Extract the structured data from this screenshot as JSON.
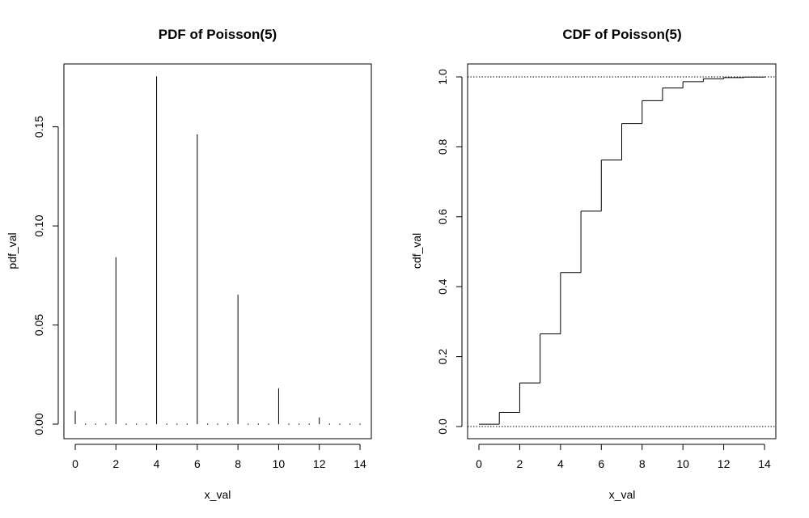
{
  "chart_data": [
    {
      "type": "bar",
      "title": "PDF of Poisson(5)",
      "xlabel": "x_val",
      "ylabel": "pdf_val",
      "xlim": [
        0,
        14
      ],
      "ylim": [
        0,
        0.176
      ],
      "xticks": [
        0,
        2,
        4,
        6,
        8,
        10,
        12,
        14
      ],
      "xtick_labels": [
        "0",
        "2",
        "4",
        "6",
        "8",
        "10",
        "12",
        "14"
      ],
      "yticks": [
        0,
        0.05,
        0.1,
        0.15
      ],
      "ytick_labels": [
        "0.00",
        "0.05",
        "0.10",
        "0.15"
      ],
      "x": [
        0,
        2,
        4,
        6,
        8,
        10,
        12
      ],
      "values": [
        0.0067,
        0.0842,
        0.1755,
        0.1462,
        0.0653,
        0.0181,
        0.0034
      ],
      "grid": false
    },
    {
      "type": "line",
      "title": "CDF of Poisson(5)",
      "xlabel": "x_val",
      "ylabel": "cdf_val",
      "xlim": [
        0,
        14
      ],
      "ylim": [
        0,
        1
      ],
      "xticks": [
        0,
        2,
        4,
        6,
        8,
        10,
        12,
        14
      ],
      "xtick_labels": [
        "0",
        "2",
        "4",
        "6",
        "8",
        "10",
        "12",
        "14"
      ],
      "yticks": [
        0,
        0.2,
        0.4,
        0.6,
        0.8,
        1.0
      ],
      "ytick_labels": [
        "0.0",
        "0.2",
        "0.4",
        "0.6",
        "0.8",
        "1.0"
      ],
      "x": [
        0,
        1,
        2,
        3,
        4,
        5,
        6,
        7,
        8,
        9,
        10,
        11,
        12,
        13,
        14
      ],
      "values": [
        0.0067,
        0.0404,
        0.1247,
        0.265,
        0.4405,
        0.616,
        0.7622,
        0.8666,
        0.9319,
        0.9682,
        0.9863,
        0.9945,
        0.998,
        0.9993,
        0.9998
      ],
      "reference_lines": [
        0,
        1
      ],
      "step": true,
      "grid": false
    }
  ]
}
